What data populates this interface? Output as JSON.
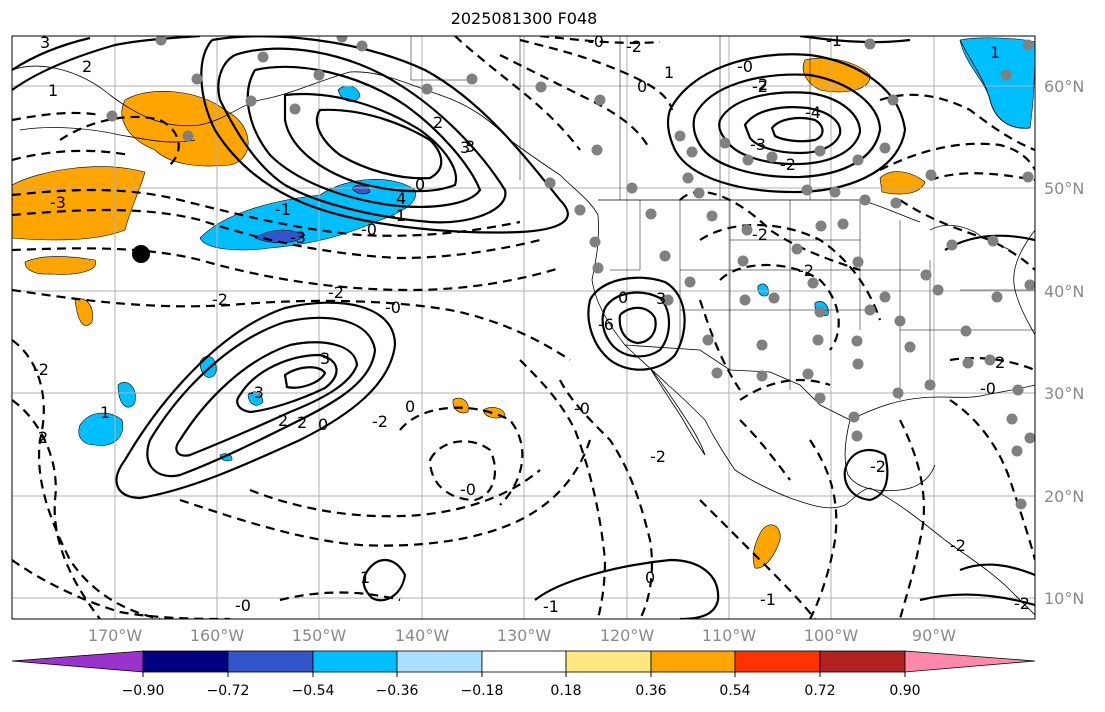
{
  "title": "2025081300 F048",
  "map": {
    "projection": "cylindrical",
    "lon_range": [
      -180,
      -80
    ],
    "lat_range": [
      8,
      65
    ],
    "lat_labels": [
      "60°N",
      "50°N",
      "40°N",
      "30°N",
      "20°N",
      "10°N"
    ],
    "lon_labels": [
      "170°W",
      "160°W",
      "150°W",
      "140°W",
      "130°W",
      "120°W",
      "110°W",
      "100°W",
      "90°W"
    ],
    "gridlines": true,
    "station_marker_color": "#808080",
    "contour_labels": [
      "3",
      "2",
      "1",
      "-3",
      "3",
      "2",
      "4",
      "-1",
      "-3",
      "-0",
      "-1",
      "-2",
      "-2",
      "-0",
      "2",
      "1",
      "-0",
      "-0",
      "3",
      "2",
      "2",
      "0",
      "-2",
      "0",
      "-0",
      "-1",
      "1",
      "0",
      "-2",
      "-1",
      "0",
      "3",
      "-6",
      "-4",
      "-2",
      "-2",
      "-0",
      "-2",
      "0",
      "1",
      "-1",
      "-0",
      "-2",
      "-2",
      "2",
      "-0",
      "-2",
      "-2",
      "-2",
      "1",
      "2",
      "-3",
      "3",
      "-3",
      "-2",
      "0"
    ]
  },
  "colorbar": {
    "ticks": [
      "−0.90",
      "−0.72",
      "−0.54",
      "−0.36",
      "−0.18",
      "0.18",
      "0.36",
      "0.54",
      "0.72",
      "0.90"
    ],
    "colors": [
      "#9933cc",
      "#000080",
      "#3355cc",
      "#00bfff",
      "#aadfff",
      "#ffffff",
      "#ffe680",
      "#ffa500",
      "#ff3300",
      "#b22222",
      "#ff88aa"
    ]
  }
}
